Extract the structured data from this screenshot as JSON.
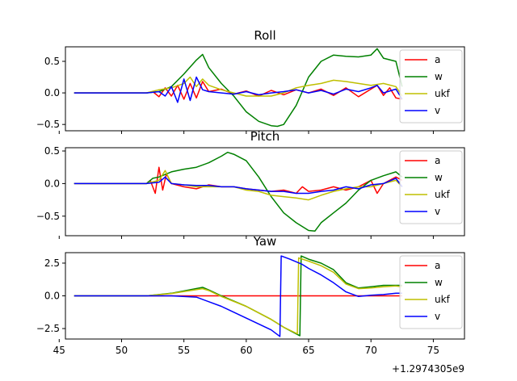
{
  "x_offset_text": "+1.2974305e9",
  "chart_data": [
    {
      "type": "line",
      "title": "Roll",
      "xlim": [
        45.5,
        77.5
      ],
      "ylim": [
        -0.6,
        0.73
      ],
      "xticks": [
        45,
        50,
        55,
        60,
        65,
        70,
        75
      ],
      "yticks": [
        {
          "v": 0.5,
          "label": "0.5"
        },
        {
          "v": 0.0,
          "label": "0.0"
        },
        {
          "v": -0.5,
          "label": "−0.5"
        }
      ],
      "show_xtick_labels": false,
      "legend_position": "top-right",
      "series": [
        {
          "name": "a",
          "color": "#ff0000",
          "x": [
            46.2,
            52,
            52.5,
            53,
            53.5,
            54,
            54.5,
            55,
            55.5,
            56,
            56.5,
            57,
            58,
            59,
            60,
            61,
            62,
            63,
            64,
            65,
            66,
            67,
            68,
            69,
            70,
            70.5,
            71,
            71.5,
            72,
            72.5
          ],
          "y": [
            0,
            0,
            0.02,
            -0.06,
            0.08,
            -0.05,
            0.12,
            -0.1,
            0.15,
            -0.08,
            0.18,
            0.02,
            0.06,
            -0.02,
            0.03,
            -0.05,
            0.04,
            -0.03,
            0.05,
            0.0,
            0.06,
            -0.04,
            0.08,
            -0.06,
            0.06,
            0.12,
            -0.04,
            0.08,
            -0.08,
            -0.1
          ]
        },
        {
          "name": "w",
          "color": "#008000",
          "x": [
            46.2,
            52,
            53,
            54,
            55,
            56,
            56.5,
            57,
            58,
            59,
            60,
            61,
            62,
            62.5,
            63,
            64,
            65,
            66,
            67,
            68,
            69,
            70,
            70.5,
            71,
            72,
            72.5
          ],
          "y": [
            0,
            0,
            0.02,
            0.1,
            0.3,
            0.52,
            0.61,
            0.4,
            0.15,
            -0.05,
            -0.3,
            -0.45,
            -0.52,
            -0.53,
            -0.5,
            -0.2,
            0.25,
            0.5,
            0.6,
            0.58,
            0.57,
            0.6,
            0.7,
            0.55,
            0.5,
            0.1
          ]
        },
        {
          "name": "ukf",
          "color": "#bfbf00",
          "x": [
            46.2,
            52,
            53,
            54,
            55,
            55.5,
            56,
            56.5,
            57,
            58,
            59,
            60,
            61,
            62,
            63,
            64,
            65,
            66,
            67,
            68,
            69,
            70,
            71,
            72,
            72.5
          ],
          "y": [
            0,
            0,
            0.05,
            0.08,
            0.15,
            0.25,
            0.1,
            0.22,
            0.12,
            0.05,
            0.0,
            -0.05,
            -0.05,
            -0.05,
            0.0,
            0.08,
            0.12,
            0.15,
            0.2,
            0.18,
            0.15,
            0.12,
            0.15,
            0.1,
            -0.05
          ]
        },
        {
          "name": "v",
          "color": "#0000ff",
          "x": [
            46.2,
            52,
            53,
            53.5,
            54,
            54.5,
            55,
            55.5,
            56,
            56.5,
            57,
            58,
            59,
            60,
            61,
            62,
            63,
            64,
            65,
            66,
            67,
            68,
            69,
            70,
            70.5,
            71,
            72,
            72.5
          ],
          "y": [
            0,
            0,
            0.02,
            -0.05,
            0.1,
            -0.15,
            0.22,
            -0.12,
            0.25,
            0.05,
            0.02,
            0.0,
            -0.02,
            0.02,
            -0.03,
            0.0,
            0.02,
            0.05,
            0.0,
            0.04,
            -0.02,
            0.06,
            0.02,
            0.08,
            0.12,
            0.0,
            0.06,
            -0.1
          ]
        }
      ]
    },
    {
      "type": "line",
      "title": "Pitch",
      "xlim": [
        45.5,
        77.5
      ],
      "ylim": [
        -0.8,
        0.55
      ],
      "xticks": [
        45,
        50,
        55,
        60,
        65,
        70,
        75
      ],
      "yticks": [
        {
          "v": 0.5,
          "label": "0.5"
        },
        {
          "v": 0.0,
          "label": "0.0"
        },
        {
          "v": -0.5,
          "label": "−0.5"
        }
      ],
      "show_xtick_labels": false,
      "legend_position": "top-right",
      "series": [
        {
          "name": "a",
          "color": "#ff0000",
          "x": [
            46.2,
            52,
            52.3,
            52.7,
            53,
            53.3,
            53.6,
            54,
            55,
            56,
            57,
            58,
            59,
            60,
            61,
            62,
            63,
            64,
            64.5,
            65,
            66,
            67,
            68,
            69,
            70,
            70.5,
            71,
            72,
            72.5
          ],
          "y": [
            0,
            0,
            0.05,
            -0.15,
            0.25,
            -0.1,
            0.15,
            0.0,
            -0.05,
            -0.08,
            -0.02,
            -0.05,
            -0.05,
            -0.08,
            -0.1,
            -0.12,
            -0.1,
            -0.15,
            -0.05,
            -0.12,
            -0.1,
            -0.05,
            -0.1,
            -0.05,
            0.05,
            -0.15,
            0.0,
            0.1,
            0.05
          ]
        },
        {
          "name": "w",
          "color": "#008000",
          "x": [
            46.2,
            52,
            52.5,
            53,
            54,
            55,
            56,
            57,
            58,
            58.5,
            59,
            60,
            61,
            62,
            63,
            64,
            65,
            65.5,
            66,
            67,
            68,
            69,
            70,
            71,
            72,
            72.5
          ],
          "y": [
            0,
            0,
            0.08,
            0.1,
            0.18,
            0.22,
            0.25,
            0.32,
            0.42,
            0.48,
            0.45,
            0.35,
            0.1,
            -0.2,
            -0.45,
            -0.6,
            -0.72,
            -0.73,
            -0.6,
            -0.45,
            -0.3,
            -0.1,
            0.05,
            0.12,
            0.18,
            0.1
          ]
        },
        {
          "name": "ukf",
          "color": "#bfbf00",
          "x": [
            46.2,
            52,
            53,
            53.5,
            54,
            55,
            56,
            57,
            58,
            59,
            60,
            61,
            62,
            63,
            64,
            65,
            66,
            67,
            68,
            69,
            70,
            71,
            72,
            72.5
          ],
          "y": [
            0,
            0,
            0.05,
            0.2,
            0.0,
            -0.02,
            -0.05,
            -0.05,
            -0.05,
            -0.05,
            -0.1,
            -0.12,
            -0.18,
            -0.2,
            -0.22,
            -0.25,
            -0.18,
            -0.12,
            -0.08,
            -0.05,
            -0.05,
            0.0,
            0.05,
            -0.05
          ]
        },
        {
          "name": "v",
          "color": "#0000ff",
          "x": [
            46.2,
            52,
            53,
            53.5,
            54,
            55,
            56,
            57,
            58,
            59,
            60,
            61,
            62,
            63,
            64,
            65,
            66,
            67,
            68,
            69,
            70,
            71,
            72,
            72.5
          ],
          "y": [
            0,
            0,
            0.02,
            0.1,
            0.0,
            -0.02,
            -0.03,
            -0.03,
            -0.05,
            -0.05,
            -0.08,
            -0.1,
            -0.12,
            -0.12,
            -0.15,
            -0.15,
            -0.12,
            -0.1,
            -0.05,
            -0.08,
            -0.02,
            0.0,
            0.08,
            -0.05
          ]
        }
      ]
    },
    {
      "type": "line",
      "title": "Yaw",
      "xlim": [
        45.5,
        77.5
      ],
      "ylim": [
        -3.3,
        3.3
      ],
      "xticks": [
        45,
        50,
        55,
        60,
        65,
        70,
        75
      ],
      "yticks": [
        {
          "v": 2.5,
          "label": "2.5"
        },
        {
          "v": 0.0,
          "label": "0.0"
        },
        {
          "v": -2.5,
          "label": "−2.5"
        }
      ],
      "show_xtick_labels": true,
      "legend_position": "top-right",
      "series": [
        {
          "name": "a",
          "color": "#ff0000",
          "x": [
            46.2,
            72.5
          ],
          "y": [
            0,
            0
          ]
        },
        {
          "name": "w",
          "color": "#008000",
          "x": [
            46.2,
            52,
            54,
            56.5,
            57,
            58,
            60,
            62,
            63,
            64.3,
            64.4,
            65,
            66,
            67,
            68,
            69,
            70,
            71,
            72,
            72.5
          ],
          "y": [
            0,
            0,
            0.2,
            0.65,
            0.45,
            0.0,
            -0.8,
            -1.8,
            -2.4,
            -3.05,
            3.05,
            2.8,
            2.5,
            2.0,
            1.0,
            0.6,
            0.7,
            0.8,
            0.8,
            0.8
          ]
        },
        {
          "name": "ukf",
          "color": "#bfbf00",
          "x": [
            46.2,
            52,
            54,
            56.5,
            57,
            58,
            60,
            62,
            63,
            64.1,
            64.2,
            65,
            66,
            67,
            68,
            69,
            70,
            71,
            72,
            72.5
          ],
          "y": [
            0,
            0,
            0.18,
            0.55,
            0.4,
            -0.05,
            -0.8,
            -1.8,
            -2.4,
            -2.9,
            2.9,
            2.65,
            2.3,
            1.8,
            0.9,
            0.55,
            0.6,
            0.7,
            0.75,
            0.7
          ]
        },
        {
          "name": "v",
          "color": "#0000ff",
          "x": [
            46.2,
            54,
            56,
            58,
            60,
            62,
            62.7,
            62.8,
            63.5,
            64.5,
            65,
            66,
            67,
            68,
            69,
            70,
            71,
            72,
            72.5
          ],
          "y": [
            0,
            0,
            -0.1,
            -0.8,
            -1.7,
            -2.6,
            -3.1,
            3.05,
            2.8,
            2.4,
            2.1,
            1.6,
            1.0,
            0.3,
            -0.05,
            0.05,
            0.1,
            0.2,
            0.2
          ]
        }
      ]
    }
  ]
}
